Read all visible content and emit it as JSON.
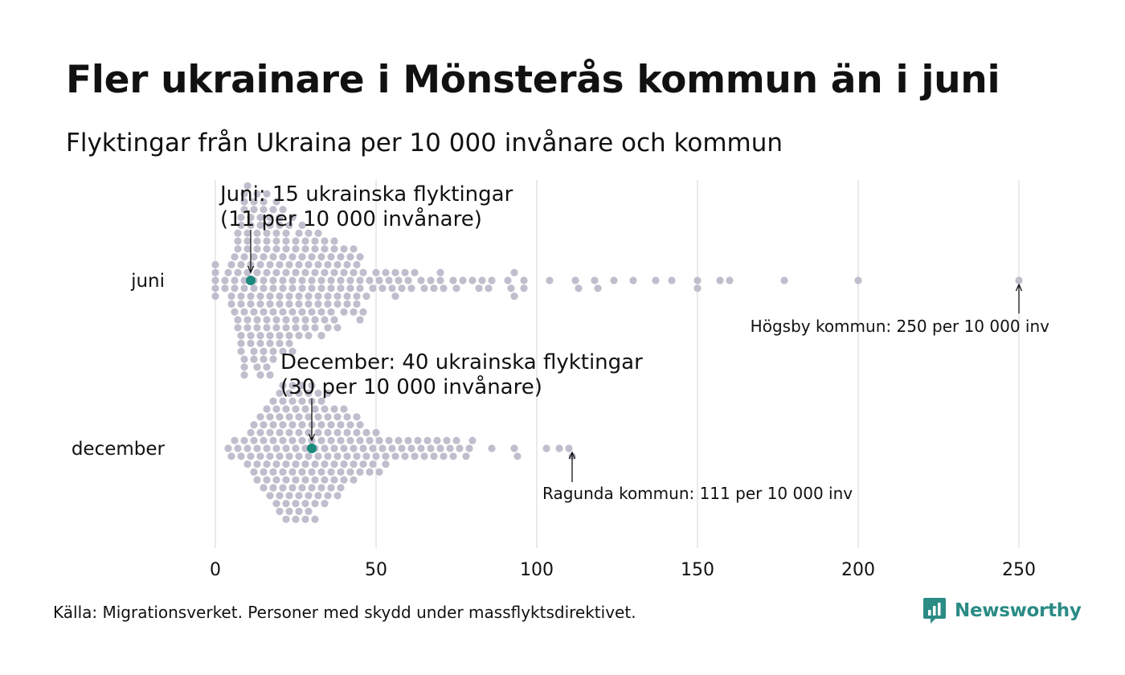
{
  "header": {
    "title": "Fler ukrainare i Mönsterås kommun än i juni",
    "subtitle": "Flyktingar från Ukraina per 10 000 invånare och kommun"
  },
  "footer": {
    "source": "Källa: Migrationsverket. Personer med skydd under massflyktsdirektivet.",
    "brand": "Newsworthy"
  },
  "colors": {
    "dot": "#c0bdcc",
    "highlight": "#1b8a7d",
    "grid": "#d4d4d4",
    "brand": "#2b8b85"
  },
  "chart_data": {
    "type": "beeswarm",
    "x_ticks": [
      0,
      50,
      100,
      150,
      200,
      250
    ],
    "xlim": [
      0,
      250
    ],
    "grid": true,
    "series": [
      {
        "name": "juni",
        "highlight": {
          "value": 11
        },
        "values": [
          0,
          0,
          0,
          0,
          0,
          3,
          3,
          4,
          5,
          5,
          5,
          6,
          6,
          6,
          6,
          7,
          7,
          7,
          7,
          7,
          7,
          8,
          8,
          8,
          8,
          8,
          8,
          8,
          8,
          9,
          9,
          9,
          9,
          9,
          9,
          9,
          9,
          9,
          9,
          10,
          10,
          10,
          10,
          10,
          10,
          10,
          11,
          11,
          11,
          11,
          11,
          11,
          11,
          12,
          12,
          12,
          12,
          12,
          12,
          12,
          12,
          13,
          13,
          13,
          13,
          13,
          13,
          13,
          13,
          14,
          14,
          14,
          14,
          14,
          14,
          14,
          14,
          15,
          15,
          15,
          15,
          15,
          15,
          15,
          15,
          16,
          16,
          16,
          16,
          16,
          16,
          16,
          16,
          17,
          17,
          17,
          17,
          17,
          17,
          17,
          17,
          18,
          18,
          18,
          18,
          18,
          18,
          18,
          19,
          19,
          19,
          19,
          19,
          19,
          19,
          20,
          20,
          20,
          20,
          20,
          20,
          20,
          21,
          21,
          21,
          21,
          21,
          21,
          22,
          22,
          22,
          22,
          22,
          22,
          23,
          23,
          23,
          23,
          23,
          23,
          24,
          24,
          24,
          24,
          24,
          24,
          25,
          25,
          25,
          25,
          25,
          26,
          26,
          26,
          26,
          26,
          27,
          27,
          27,
          27,
          27,
          28,
          28,
          28,
          28,
          28,
          29,
          29,
          29,
          29,
          29,
          30,
          30,
          30,
          30,
          31,
          31,
          31,
          31,
          31,
          32,
          32,
          32,
          32,
          33,
          33,
          33,
          33,
          33,
          34,
          34,
          34,
          34,
          35,
          35,
          35,
          35,
          36,
          36,
          36,
          36,
          37,
          37,
          37,
          37,
          38,
          38,
          38,
          38,
          39,
          39,
          39,
          40,
          40,
          40,
          41,
          41,
          41,
          42,
          42,
          42,
          43,
          43,
          43,
          44,
          44,
          44,
          45,
          45,
          45,
          45,
          46,
          46,
          47,
          48,
          49,
          50,
          51,
          52,
          53,
          54,
          55,
          56,
          56,
          57,
          58,
          59,
          60,
          61,
          62,
          64,
          65,
          67,
          68,
          70,
          70,
          71,
          74,
          75,
          77,
          80,
          82,
          83,
          85,
          86,
          91,
          92,
          93,
          93,
          96,
          96,
          104,
          112,
          113,
          118,
          119,
          124,
          130,
          137,
          142,
          150,
          150,
          157,
          160,
          177,
          200,
          250
        ]
      },
      {
        "name": "december",
        "highlight": {
          "value": 30
        },
        "values": [
          4,
          5,
          6,
          7,
          8,
          9,
          10,
          10,
          11,
          11,
          12,
          12,
          12,
          13,
          13,
          13,
          14,
          14,
          14,
          15,
          15,
          15,
          15,
          16,
          16,
          16,
          16,
          17,
          17,
          17,
          17,
          18,
          18,
          18,
          18,
          18,
          19,
          19,
          19,
          19,
          19,
          20,
          20,
          20,
          20,
          20,
          20,
          21,
          21,
          21,
          21,
          21,
          21,
          22,
          22,
          22,
          22,
          22,
          22,
          23,
          23,
          23,
          23,
          23,
          23,
          24,
          24,
          24,
          24,
          24,
          24,
          25,
          25,
          25,
          25,
          25,
          25,
          26,
          26,
          26,
          26,
          26,
          26,
          27,
          27,
          27,
          27,
          27,
          27,
          28,
          28,
          28,
          28,
          28,
          28,
          29,
          29,
          29,
          29,
          29,
          29,
          30,
          30,
          30,
          30,
          30,
          30,
          31,
          31,
          31,
          31,
          31,
          31,
          32,
          32,
          32,
          32,
          32,
          33,
          33,
          33,
          33,
          33,
          34,
          34,
          34,
          34,
          34,
          35,
          35,
          35,
          35,
          35,
          36,
          36,
          36,
          36,
          37,
          37,
          37,
          37,
          38,
          38,
          38,
          38,
          39,
          39,
          39,
          39,
          40,
          40,
          40,
          40,
          41,
          41,
          41,
          42,
          42,
          42,
          43,
          43,
          43,
          44,
          44,
          44,
          45,
          45,
          45,
          46,
          46,
          47,
          47,
          48,
          48,
          49,
          49,
          50,
          50,
          51,
          51,
          52,
          53,
          53,
          54,
          55,
          56,
          57,
          58,
          59,
          60,
          61,
          62,
          63,
          64,
          65,
          66,
          67,
          68,
          69,
          70,
          71,
          72,
          73,
          74,
          75,
          76,
          78,
          79,
          80,
          86,
          93,
          94,
          103,
          107,
          110,
          111
        ]
      }
    ],
    "annotations": [
      {
        "series": "juni",
        "value": 11,
        "lines": [
          "Juni: 15 ukrainska flyktingar",
          "(11 per 10 000 invånare)"
        ]
      },
      {
        "series": "juni",
        "value": 250,
        "lines": [
          "Högsby kommun: 250 per 10 000 inv"
        ]
      },
      {
        "series": "december",
        "value": 30,
        "lines": [
          "December: 40 ukrainska flyktingar",
          "(30 per 10 000 invånare)"
        ]
      },
      {
        "series": "december",
        "value": 111,
        "lines": [
          "Ragunda kommun: 111 per 10 000 inv"
        ]
      }
    ]
  }
}
